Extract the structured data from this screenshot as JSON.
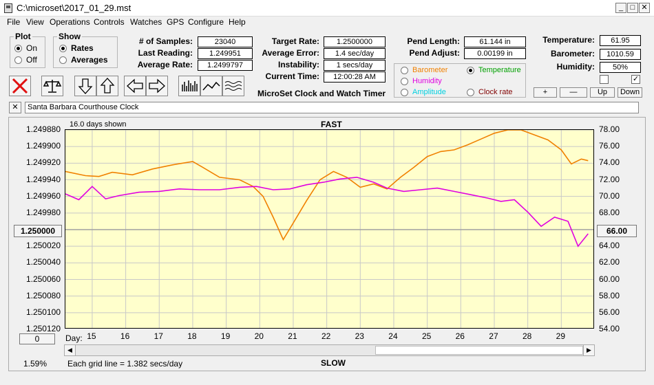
{
  "window": {
    "title": "C:\\microset\\2017_01_29.mst",
    "minimize": "_",
    "maximize": "□",
    "close": "✕"
  },
  "menu": [
    "File",
    "View",
    "Operations",
    "Controls",
    "Watches",
    "GPS",
    "Configure",
    "Help"
  ],
  "plot_group": {
    "label": "Plot",
    "options": [
      "On",
      "Off"
    ],
    "selected": "On"
  },
  "show_group": {
    "label": "Show",
    "options": [
      "Rates",
      "Averages"
    ],
    "selected": "Rates"
  },
  "readings": [
    {
      "label": "# of Samples:",
      "value": "23040"
    },
    {
      "label": "Last Reading:",
      "value": "1.249951"
    },
    {
      "label": "Average Rate:",
      "value": "1.2499797"
    }
  ],
  "rates": [
    {
      "label": "Target Rate:",
      "value": "1.2500000"
    },
    {
      "label": "Average Error:",
      "value": "1.4 sec/day"
    },
    {
      "label": "Instability:",
      "value": "1 secs/day"
    },
    {
      "label": "Current Time:",
      "value": "12:00:28 AM"
    }
  ],
  "app_caption": "MicroSet Clock and Watch Timer",
  "pend": [
    {
      "label": "Pend Length:",
      "value": "61.144 in"
    },
    {
      "label": "Pend Adjust:",
      "value": "0.00199 in"
    }
  ],
  "env": [
    {
      "label": "Temperature:",
      "value": "61.95"
    },
    {
      "label": "Barometer:",
      "value": "1010.59"
    },
    {
      "label": "Humidity:",
      "value": "50%"
    }
  ],
  "series_select": [
    {
      "label": "Barometer",
      "color": "#f08000",
      "selected": false
    },
    {
      "label": "Temperature",
      "color": "#00a000",
      "selected": true
    },
    {
      "label": "Humidity",
      "color": "#e000e0",
      "selected": false
    },
    {
      "label": "Clock rate",
      "color": "#800000",
      "selected": false
    },
    {
      "label": "Amplitude",
      "color": "#00d0e0",
      "selected": false
    }
  ],
  "env_checks": [
    false,
    true
  ],
  "step_buttons": {
    "plus": "+",
    "minus": "—",
    "up": "Up",
    "down": "Down"
  },
  "clock_name": "Santa Barbara Courthouse Clock",
  "clear_button": "✕",
  "chart": {
    "top_label": "FAST",
    "bottom_label": "SLOW",
    "days_shown": "16.0 days shown",
    "left_center": "1.250000",
    "right_center": "66.00",
    "left_bottom": "0",
    "percent": "1.59%",
    "grid_note": "Each grid line = 1.382 secs/day",
    "day_prefix": "Day:"
  },
  "chart_data": {
    "type": "line",
    "x_label": "Day:",
    "xlim": [
      14.2,
      30.0
    ],
    "x_ticks": [
      "15",
      "16",
      "17",
      "18",
      "19",
      "20",
      "21",
      "22",
      "23",
      "24",
      "25",
      "26",
      "27",
      "28",
      "29"
    ],
    "y_left_ticks": [
      "1.249880",
      "1.249900",
      "1.249920",
      "1.249940",
      "1.249960",
      "1.249980",
      "1.250000",
      "1.250020",
      "1.250040",
      "1.250060",
      "1.250080",
      "1.250100",
      "1.250120"
    ],
    "y_left_range": [
      1.25012,
      1.24988
    ],
    "y_right_ticks": [
      "78.00",
      "76.00",
      "74.00",
      "72.00",
      "70.00",
      "68.00",
      "66.00",
      "64.00",
      "62.00",
      "60.00",
      "58.00",
      "56.00",
      "54.00"
    ],
    "y_right_range": [
      54,
      78
    ],
    "series": [
      {
        "name": "Barometer",
        "color": "#f08000",
        "x": [
          14.2,
          14.8,
          15.2,
          15.6,
          16.2,
          16.8,
          17.4,
          18.0,
          18.3,
          18.8,
          19.4,
          19.8,
          20.1,
          20.4,
          20.7,
          21.0,
          21.4,
          21.8,
          22.2,
          22.6,
          23.0,
          23.4,
          23.8,
          24.2,
          24.6,
          25.0,
          25.4,
          25.8,
          26.2,
          26.6,
          27.0,
          27.4,
          27.8,
          28.2,
          28.6,
          29.0,
          29.3,
          29.6,
          29.8
        ],
        "y": [
          73.0,
          72.5,
          72.4,
          72.9,
          72.6,
          73.3,
          73.8,
          74.2,
          73.5,
          72.3,
          72.0,
          71.2,
          70.0,
          67.5,
          64.8,
          66.8,
          69.5,
          72.0,
          73.0,
          72.3,
          71.1,
          71.5,
          70.9,
          72.3,
          73.5,
          74.8,
          75.4,
          75.6,
          76.2,
          76.9,
          77.6,
          78.0,
          78.0,
          77.4,
          76.8,
          75.6,
          73.9,
          74.5,
          74.3
        ]
      },
      {
        "name": "Humidity",
        "color": "#e000e0",
        "x": [
          14.2,
          14.6,
          15.0,
          15.4,
          15.8,
          16.4,
          17.0,
          17.6,
          18.2,
          18.8,
          19.4,
          19.9,
          20.4,
          20.9,
          21.4,
          21.9,
          22.4,
          22.9,
          23.4,
          23.8,
          24.3,
          24.8,
          25.3,
          25.8,
          26.3,
          26.8,
          27.2,
          27.6,
          28.0,
          28.4,
          28.8,
          29.2,
          29.5,
          29.8
        ],
        "y": [
          70.3,
          69.6,
          71.2,
          69.7,
          70.1,
          70.5,
          70.6,
          70.9,
          70.8,
          70.8,
          71.1,
          71.2,
          70.8,
          70.9,
          71.4,
          71.7,
          72.1,
          72.3,
          71.7,
          71.0,
          70.6,
          70.8,
          71.0,
          70.6,
          70.2,
          69.8,
          69.4,
          69.6,
          68.1,
          66.4,
          67.5,
          67.0,
          64.0,
          65.5
        ]
      }
    ]
  }
}
